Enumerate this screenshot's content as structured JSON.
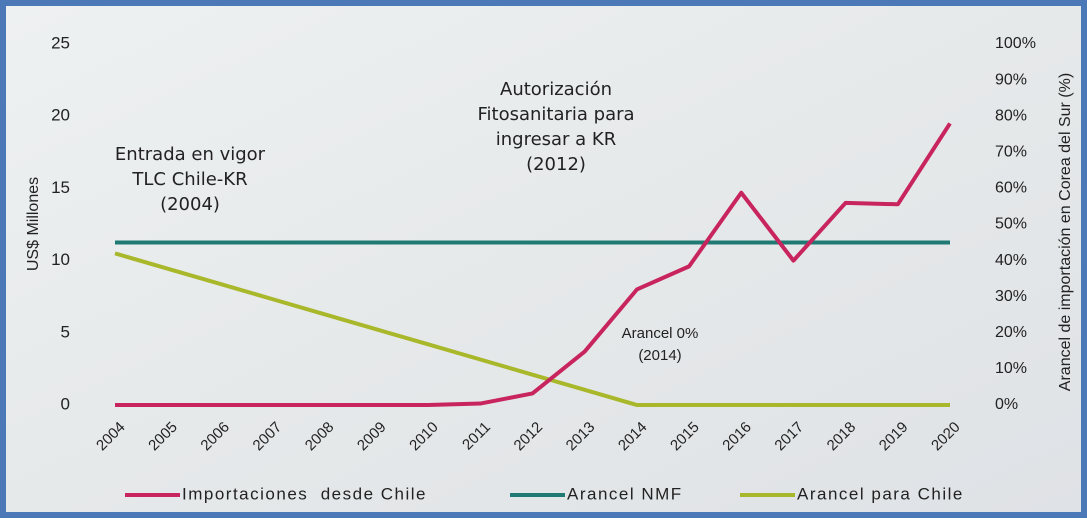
{
  "chart_data": {
    "type": "line",
    "categories": [
      "2004",
      "2005",
      "2006",
      "2007",
      "2008",
      "2009",
      "2010",
      "2011",
      "2012",
      "2013",
      "2014",
      "2015",
      "2016",
      "2017",
      "2018",
      "2019",
      "2020"
    ],
    "series": [
      {
        "name": "Importaciones  desde Chile",
        "color": "#c8245e",
        "values": [
          0,
          0,
          0,
          0,
          0,
          0,
          0,
          0.1,
          0.8,
          3.7,
          8,
          9.6,
          14.7,
          10,
          14,
          13.9,
          19.5
        ]
      },
      {
        "name": "Arancel NMF",
        "color": "#1f7a73",
        "axis": "y2",
        "values": [
          45,
          45,
          45,
          45,
          45,
          45,
          45,
          45,
          45,
          45,
          45,
          45,
          45,
          45,
          45,
          45,
          45
        ]
      },
      {
        "name": "Arancel para Chile",
        "color": "#a8b82a",
        "axis": "y2",
        "values": [
          42,
          37.8,
          33.6,
          29.4,
          25.2,
          21,
          16.8,
          12.6,
          8.4,
          4.2,
          0,
          0,
          0,
          0,
          0,
          0,
          0
        ]
      }
    ],
    "ylabel": "US$ Millones",
    "y2label": "Arancel de importación en Corea del Sur (%)",
    "ylim": [
      0,
      25
    ],
    "yticks": [
      0,
      5,
      10,
      15,
      20,
      25
    ],
    "y2lim": [
      0,
      100
    ],
    "y2ticks": [
      {
        "value": 0,
        "label": "0%"
      },
      {
        "value": 10,
        "label": "10%"
      },
      {
        "value": 20,
        "label": "20%"
      },
      {
        "value": 30,
        "label": "30%"
      },
      {
        "value": 40,
        "label": "40%"
      },
      {
        "value": 50,
        "label": "50%"
      },
      {
        "value": 60,
        "label": "60%"
      },
      {
        "value": 70,
        "label": "70%"
      },
      {
        "value": 80,
        "label": "80%"
      },
      {
        "value": 90,
        "label": "90%"
      },
      {
        "value": 100,
        "label": "100%"
      }
    ],
    "annotations": [
      {
        "lines": [
          "Entrada en vigor",
          "TLC Chile-KR",
          "(2004)"
        ]
      },
      {
        "lines": [
          "Autorización",
          "Fitosanitaria para",
          "ingresar a KR",
          "(2012)"
        ]
      },
      {
        "lines": [
          "Arancel 0%",
          "(2014)"
        ]
      }
    ],
    "legend": "bottom"
  }
}
